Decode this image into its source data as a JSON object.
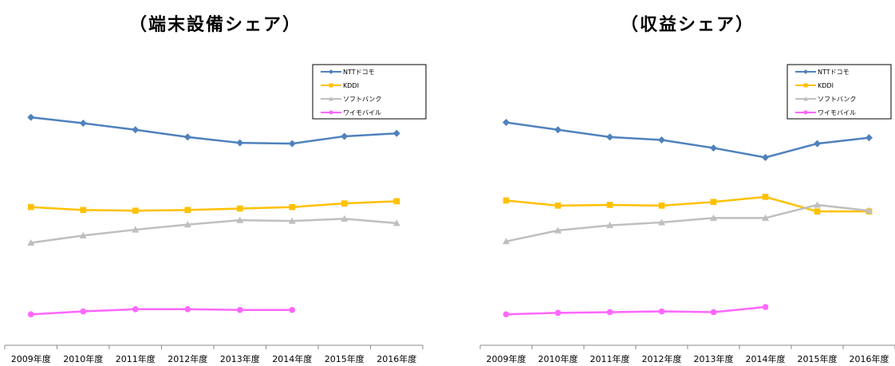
{
  "chart_data": [
    {
      "type": "line",
      "title": "（端末設備シェア）",
      "categories": [
        "2009年度",
        "2010年度",
        "2011年度",
        "2012年度",
        "2013年度",
        "2014年度",
        "2015年度",
        "2016年度"
      ],
      "ylim": [
        0,
        100
      ],
      "grid": false,
      "legend_position": "top-right",
      "series": [
        {
          "name": "NTTドコモ",
          "color": "#4F81BD",
          "marker": "diamond",
          "values": [
            95.0,
            91.0,
            86.5,
            81.5,
            77.5,
            77.0,
            82.0,
            84.0
          ]
        },
        {
          "name": "KDDI",
          "color": "#FFC000",
          "marker": "square",
          "values": [
            33.5,
            31.5,
            31.0,
            31.5,
            32.5,
            33.5,
            36.0,
            37.5
          ]
        },
        {
          "name": "ソフトバンク",
          "color": "#BFBFBF",
          "marker": "triangle",
          "values": [
            9.0,
            14.0,
            18.0,
            21.5,
            24.5,
            24.0,
            25.5,
            22.5
          ]
        },
        {
          "name": "ワイモバイル",
          "color": "#FF66FF",
          "marker": "circle",
          "values": [
            -40.0,
            -38.0,
            -36.5,
            -36.5,
            -37.0,
            -37.0,
            null,
            null
          ]
        }
      ]
    },
    {
      "type": "line",
      "title": "（収益シェア）",
      "categories": [
        "2009年度",
        "2010年度",
        "2011年度",
        "2012年度",
        "2013年度",
        "2014年度",
        "2015年度",
        "2016年度"
      ],
      "ylim": [
        0,
        100
      ],
      "grid": false,
      "legend_position": "top-right",
      "series": [
        {
          "name": "NTTドコモ",
          "color": "#4F81BD",
          "marker": "diamond",
          "values": [
            91.5,
            86.5,
            81.5,
            79.5,
            74.0,
            67.5,
            77.0,
            81.0
          ]
        },
        {
          "name": "KDDI",
          "color": "#FFC000",
          "marker": "square",
          "values": [
            38.0,
            34.5,
            35.0,
            34.5,
            37.0,
            40.5,
            30.5,
            30.5
          ]
        },
        {
          "name": "ソフトバンク",
          "color": "#BFBFBF",
          "marker": "triangle",
          "values": [
            10.0,
            17.5,
            21.0,
            23.0,
            26.0,
            26.0,
            35.0,
            31.0
          ]
        },
        {
          "name": "ワイモバイル",
          "color": "#FF66FF",
          "marker": "circle",
          "values": [
            -40.0,
            -39.0,
            -38.5,
            -38.0,
            -38.5,
            -35.0,
            null,
            null
          ]
        }
      ]
    }
  ]
}
